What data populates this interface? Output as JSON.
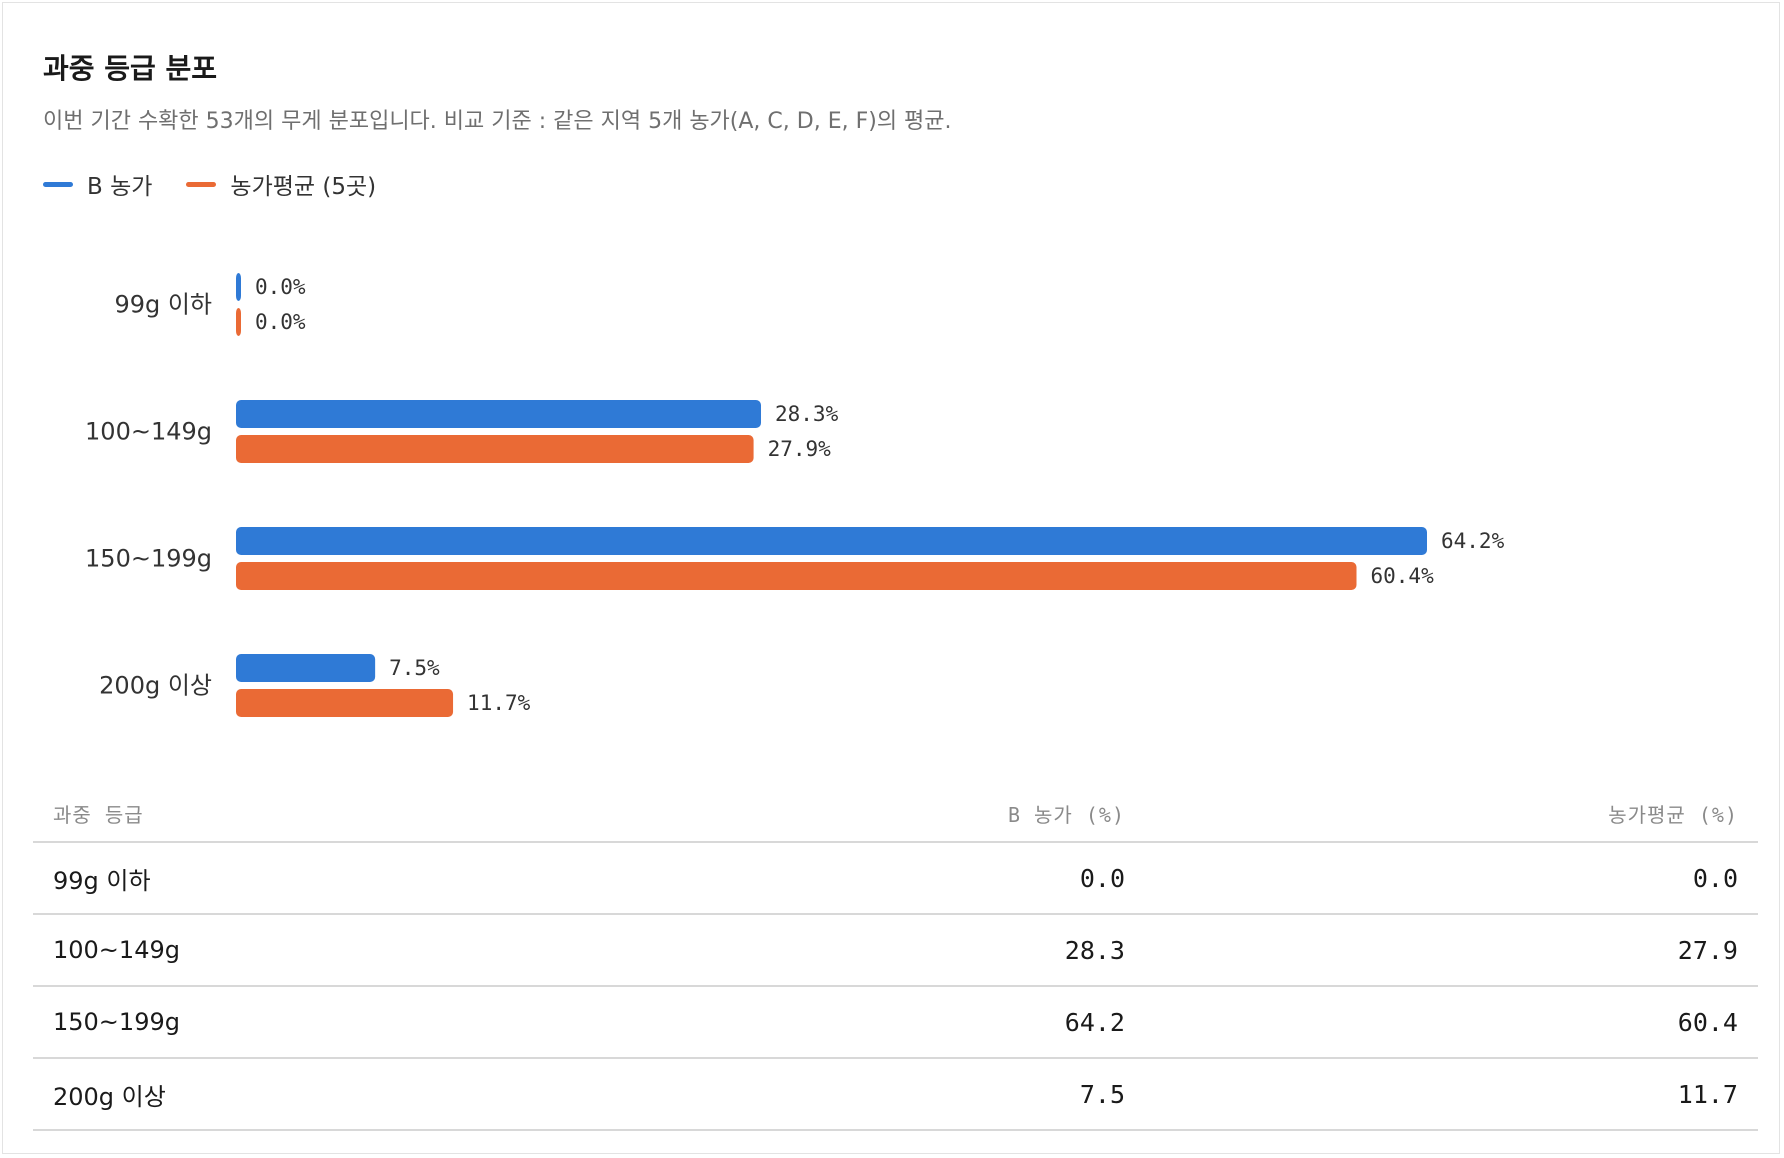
{
  "header": {
    "title": "과중 등급 분포",
    "subtitle": "이번 기간 수확한 53개의 무게 분포입니다. 비교 기준 : 같은 지역 5개 농가(A, C, D, E, F)의 평균."
  },
  "legend": [
    {
      "label": "B 농가",
      "color": "#2f7ad6"
    },
    {
      "label": "농가평균 (5곳)",
      "color": "#ea6a35"
    }
  ],
  "chart_data": {
    "type": "bar",
    "orientation": "horizontal",
    "categories": [
      "99g 이하",
      "100~149g",
      "150~199g",
      "200g 이상"
    ],
    "series": [
      {
        "name": "B 농가",
        "color": "#2f7ad6",
        "values": [
          0.0,
          28.3,
          64.2,
          7.5
        ],
        "labels": [
          "0.0%",
          "28.3%",
          "64.2%",
          "7.5%"
        ]
      },
      {
        "name": "농가평균 (5곳)",
        "color": "#ea6a35",
        "values": [
          0.0,
          27.9,
          60.4,
          11.7
        ],
        "labels": [
          "0.0%",
          "27.9%",
          "60.4%",
          "11.7%"
        ]
      }
    ],
    "xlim": [
      0,
      100
    ],
    "grid": false
  },
  "table": {
    "headers": [
      "과중 등급",
      "B 농가 (%)",
      "농가평균 (%)"
    ],
    "rows": [
      [
        "99g 이하",
        "0.0",
        "0.0"
      ],
      [
        "100~149g",
        "28.3",
        "27.9"
      ],
      [
        "150~199g",
        "64.2",
        "60.4"
      ],
      [
        "200g 이상",
        "7.5",
        "11.7"
      ]
    ]
  }
}
